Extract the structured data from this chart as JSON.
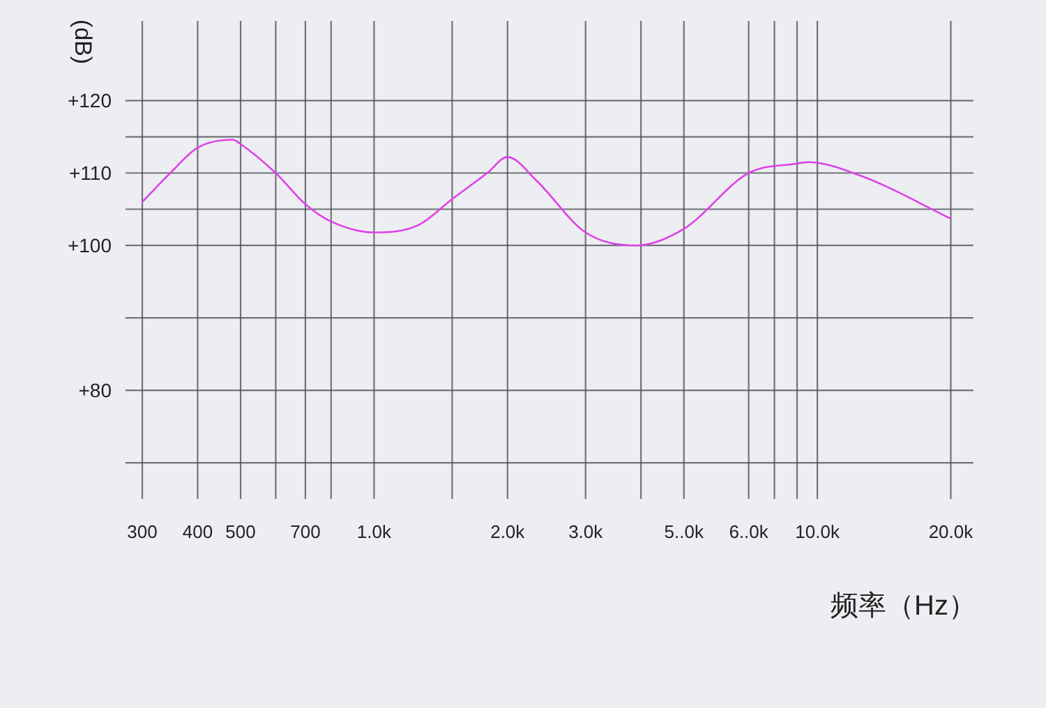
{
  "chart_data": {
    "type": "line",
    "xlabel": "频率（Hz）",
    "ylabel": "(dB)",
    "x": [
      300,
      347,
      400,
      480,
      500,
      600,
      700,
      800,
      1000,
      1258,
      1500,
      1800,
      2000,
      2329,
      3000,
      3900,
      5000,
      7000,
      9000,
      9530,
      12800,
      20000
    ],
    "series": [
      {
        "color": "#e040e8",
        "values": [
          106,
          110,
          113.5,
          114.6,
          114,
          110,
          105.7,
          103.3,
          101.8,
          102.8,
          106.4,
          110,
          112.2,
          108.9,
          101.8,
          100,
          102.3,
          110,
          111.3,
          111.5,
          109.4,
          103.7
        ]
      }
    ],
    "log": "x",
    "xlim": [
      275,
      22500
    ],
    "xticks": [
      300,
      400,
      500,
      {
        "value": 600,
        "label": null
      },
      700,
      {
        "value": 800,
        "label": null
      },
      {
        "value": 1000,
        "label": "1.0k"
      },
      {
        "value": 1500,
        "label": null
      },
      {
        "value": 2000,
        "label": "2.0k"
      },
      {
        "value": 3000,
        "label": "3.0k"
      },
      {
        "value": 4000,
        "label": null
      },
      {
        "value": 5000,
        "label": "5..0k"
      },
      {
        "value": 7000,
        "label": "6..0k"
      },
      {
        "value": 8000,
        "label": null
      },
      {
        "value": 9000,
        "label": null
      },
      {
        "value": 10000,
        "label": "10.0k"
      },
      {
        "value": 20000,
        "label": "20.0k"
      }
    ],
    "ylim": [
      65,
      131
    ],
    "yticks": [
      {
        "value": 120,
        "label": "+120"
      },
      {
        "value": 115,
        "label": null
      },
      {
        "value": 110,
        "label": "+110"
      },
      {
        "value": 105,
        "label": null
      },
      {
        "value": 100,
        "label": "+100"
      },
      {
        "value": 90,
        "label": null
      },
      {
        "value": 80,
        "label": "+80"
      },
      {
        "value": 70,
        "label": null
      }
    ],
    "grid": true,
    "marker": "none",
    "line_style": "solid"
  }
}
